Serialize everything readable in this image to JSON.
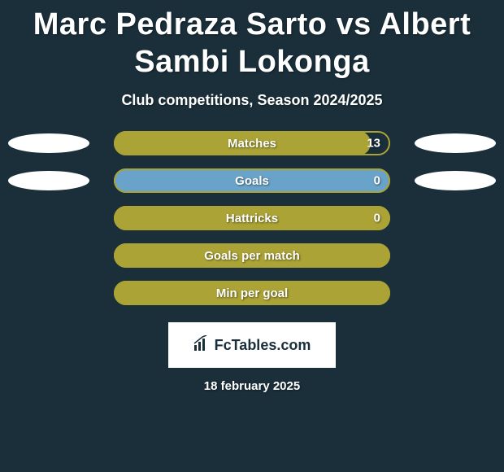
{
  "title": "Marc Pedraza Sarto vs Albert Sambi Lokonga",
  "subtitle": "Club competitions, Season 2024/2025",
  "title_fontsize": 38,
  "subtitle_fontsize": 18,
  "background_color": "#1a2f3a",
  "text_color": "#ffffff",
  "oval_color": "#ffffff",
  "logo": {
    "text": "FcTables.com",
    "box_bg": "#ffffff",
    "text_color": "#1a2f3a",
    "fontsize": 18
  },
  "date": "18 february 2025",
  "date_fontsize": 15,
  "bars": [
    {
      "label": "Matches",
      "value": "13",
      "fill_pct_left": 0,
      "fill_pct_right": 93,
      "fill_color": "#aba335",
      "border_color": "#aba335",
      "label_fontsize": 15,
      "has_left_oval": true,
      "has_right_oval": true
    },
    {
      "label": "Goals",
      "value": "0",
      "fill_pct_left": 0,
      "fill_pct_right": 100,
      "fill_color": "#6aa3c9",
      "border_color": "#aba335",
      "label_fontsize": 15,
      "has_left_oval": true,
      "has_right_oval": true
    },
    {
      "label": "Hattricks",
      "value": "0",
      "fill_pct_left": 0,
      "fill_pct_right": 100,
      "fill_color": "#aba335",
      "border_color": "#aba335",
      "label_fontsize": 15,
      "has_left_oval": false,
      "has_right_oval": false
    },
    {
      "label": "Goals per match",
      "value": "",
      "fill_pct_left": 0,
      "fill_pct_right": 100,
      "fill_color": "#aba335",
      "border_color": "#aba335",
      "label_fontsize": 15,
      "has_left_oval": false,
      "has_right_oval": false
    },
    {
      "label": "Min per goal",
      "value": "",
      "fill_pct_left": 0,
      "fill_pct_right": 100,
      "fill_color": "#aba335",
      "border_color": "#aba335",
      "label_fontsize": 15,
      "has_left_oval": false,
      "has_right_oval": false
    }
  ]
}
